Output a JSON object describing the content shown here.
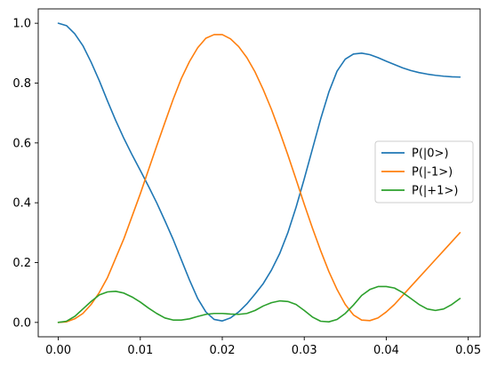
{
  "chart_data": {
    "type": "line",
    "title": "",
    "xlabel": "",
    "ylabel": "",
    "xlim": [
      -0.00245,
      0.05145
    ],
    "ylim": [
      -0.048,
      1.048
    ],
    "xticks": [
      0.0,
      0.01,
      0.02,
      0.03,
      0.04,
      0.05
    ],
    "xtick_labels": [
      "0.00",
      "0.01",
      "0.02",
      "0.03",
      "0.04",
      "0.05"
    ],
    "yticks": [
      0.0,
      0.2,
      0.4,
      0.6,
      0.8,
      1.0
    ],
    "ytick_labels": [
      "0.0",
      "0.2",
      "0.4",
      "0.6",
      "0.8",
      "1.0"
    ],
    "grid": false,
    "legend_position": "center-right",
    "x": [
      0.0,
      0.001,
      0.002,
      0.003,
      0.004,
      0.005,
      0.006,
      0.007,
      0.008,
      0.009,
      0.01,
      0.011,
      0.012,
      0.013,
      0.014,
      0.015,
      0.016,
      0.017,
      0.018,
      0.019,
      0.02,
      0.021,
      0.022,
      0.023,
      0.024,
      0.025,
      0.026,
      0.027,
      0.028,
      0.029,
      0.03,
      0.031,
      0.032,
      0.033,
      0.034,
      0.035,
      0.036,
      0.037,
      0.038,
      0.039,
      0.04,
      0.041,
      0.042,
      0.043,
      0.044,
      0.045,
      0.046,
      0.047,
      0.048,
      0.049
    ],
    "series": [
      {
        "name": "P(|0>)",
        "color": "#1f77b4",
        "values": [
          1.0,
          0.992,
          0.965,
          0.925,
          0.87,
          0.808,
          0.74,
          0.675,
          0.615,
          0.56,
          0.508,
          0.455,
          0.4,
          0.34,
          0.278,
          0.21,
          0.142,
          0.08,
          0.035,
          0.01,
          0.005,
          0.015,
          0.035,
          0.062,
          0.095,
          0.13,
          0.175,
          0.23,
          0.3,
          0.385,
          0.48,
          0.58,
          0.68,
          0.77,
          0.84,
          0.88,
          0.897,
          0.9,
          0.895,
          0.885,
          0.873,
          0.862,
          0.851,
          0.842,
          0.835,
          0.83,
          0.826,
          0.823,
          0.821,
          0.82
        ]
      },
      {
        "name": "P(|-1>)",
        "color": "#ff7f0e",
        "values": [
          0.0,
          0.002,
          0.012,
          0.03,
          0.06,
          0.1,
          0.15,
          0.215,
          0.28,
          0.355,
          0.43,
          0.51,
          0.59,
          0.668,
          0.745,
          0.815,
          0.872,
          0.918,
          0.95,
          0.962,
          0.962,
          0.948,
          0.922,
          0.885,
          0.837,
          0.778,
          0.712,
          0.638,
          0.56,
          0.478,
          0.395,
          0.315,
          0.24,
          0.17,
          0.11,
          0.06,
          0.025,
          0.008,
          0.006,
          0.015,
          0.035,
          0.06,
          0.09,
          0.12,
          0.15,
          0.18,
          0.21,
          0.24,
          0.27,
          0.3
        ]
      },
      {
        "name": "P(|+1>)",
        "color": "#2ca02c",
        "values": [
          0.0,
          0.004,
          0.02,
          0.045,
          0.07,
          0.092,
          0.102,
          0.104,
          0.098,
          0.085,
          0.068,
          0.048,
          0.03,
          0.015,
          0.008,
          0.008,
          0.012,
          0.02,
          0.027,
          0.03,
          0.03,
          0.028,
          0.027,
          0.03,
          0.04,
          0.055,
          0.066,
          0.072,
          0.07,
          0.06,
          0.04,
          0.018,
          0.004,
          0.002,
          0.01,
          0.03,
          0.058,
          0.09,
          0.11,
          0.12,
          0.12,
          0.115,
          0.1,
          0.08,
          0.06,
          0.045,
          0.04,
          0.045,
          0.06,
          0.08
        ]
      }
    ]
  }
}
